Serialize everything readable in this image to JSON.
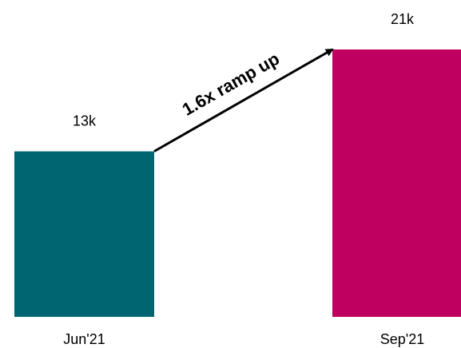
{
  "chart_data": {
    "type": "bar",
    "categories": [
      "Jun'21",
      "Sep'21"
    ],
    "values": [
      13,
      21
    ],
    "value_labels": [
      "13k",
      "21k"
    ],
    "unit": "k",
    "colors": [
      "#006570",
      "#bf0060"
    ],
    "ylim": [
      0,
      21
    ],
    "annotation": {
      "text": "1.6x ramp up",
      "from_category": "Jun'21",
      "to_category": "Sep'21"
    },
    "grid": false,
    "legend": "none"
  }
}
